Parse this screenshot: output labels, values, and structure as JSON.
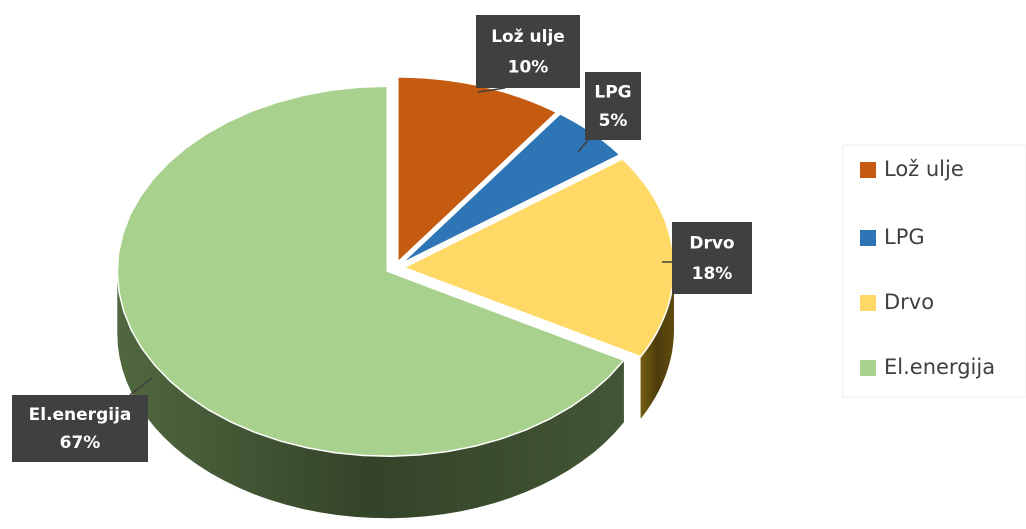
{
  "chart_data": {
    "type": "pie",
    "categories": [
      "Lož ulje",
      "LPG",
      "Drvo",
      "El.energija"
    ],
    "values": [
      10,
      5,
      18,
      67
    ],
    "value_labels": [
      "10%",
      "5%",
      "18%",
      "67%"
    ],
    "colors": [
      "#c55a11",
      "#2e75b6",
      "#ffd966",
      "#a9d18e"
    ],
    "legend": "right"
  }
}
